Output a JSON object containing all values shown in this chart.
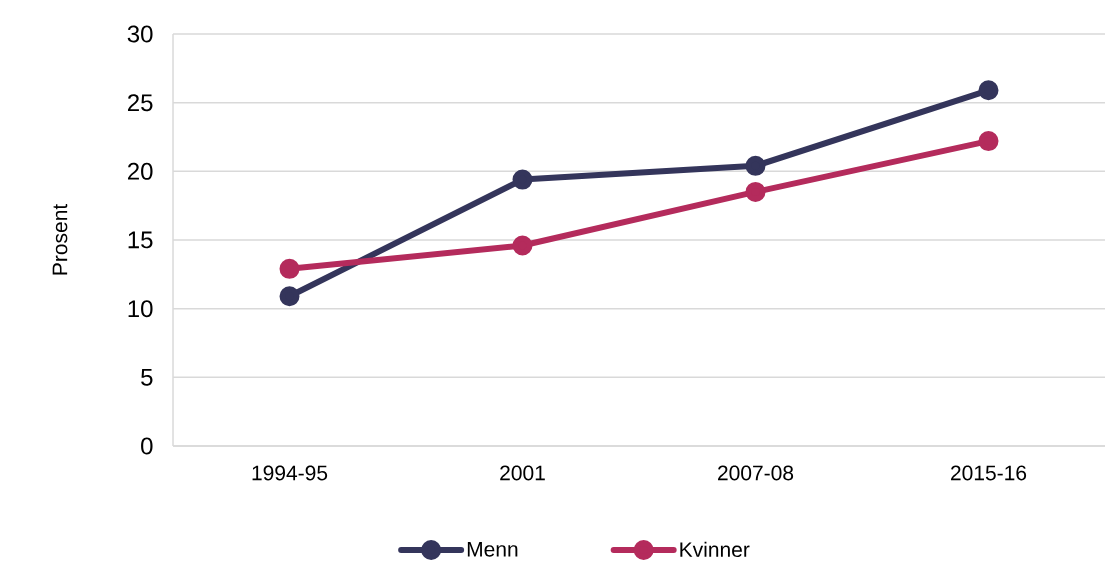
{
  "chart_data": {
    "type": "line",
    "categories": [
      "1994-95",
      "2001",
      "2007-08",
      "2015-16"
    ],
    "ylabel": "Prosent",
    "series": [
      {
        "name": "Menn",
        "color": "#34355b",
        "values": [
          10.9,
          19.4,
          20.4,
          25.9
        ]
      },
      {
        "name": "Kvinner",
        "color": "#b42b5c",
        "values": [
          12.9,
          14.6,
          18.5,
          22.2
        ]
      }
    ],
    "ylim": [
      0,
      30
    ],
    "yticks": [
      0,
      5,
      10,
      15,
      20,
      25,
      30
    ],
    "grid": "y",
    "legend": "bottom",
    "marker": "circle",
    "line_style": "solid"
  }
}
